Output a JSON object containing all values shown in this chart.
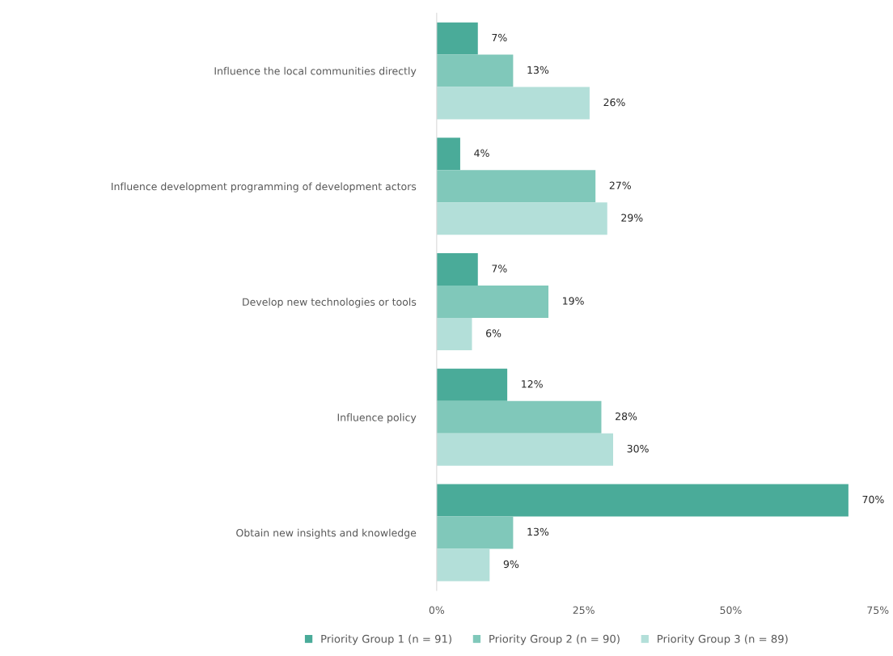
{
  "chart_data": {
    "type": "bar",
    "orientation": "horizontal",
    "categories": [
      "Influence the local communities directly",
      "Influence development programming of development actors",
      "Develop new technologies or tools",
      "Influence policy",
      "Obtain new insights and knowledge"
    ],
    "series": [
      {
        "name": "Priority Group 1 (n = 91)",
        "color": "#4aab99",
        "values": [
          7,
          4,
          7,
          12,
          70
        ],
        "value_labels": [
          "7%",
          "4%",
          "7%",
          "12%",
          "70%"
        ]
      },
      {
        "name": "Priority Group 2 (n = 90)",
        "color": "#80c8ba",
        "values": [
          13,
          27,
          19,
          28,
          13
        ],
        "value_labels": [
          "13%",
          "27%",
          "19%",
          "28%",
          "13%"
        ]
      },
      {
        "name": "Priority Group 3 (n = 89)",
        "color": "#b3dfd9",
        "values": [
          26,
          29,
          6,
          30,
          9
        ],
        "value_labels": [
          "26%",
          "29%",
          "6%",
          "30%",
          "9%"
        ]
      }
    ],
    "xlim": [
      0,
      75
    ],
    "xticks": [
      {
        "value": 0,
        "label": "0%"
      },
      {
        "value": 25,
        "label": "25%"
      },
      {
        "value": 50,
        "label": "50%"
      },
      {
        "value": 75,
        "label": "75%"
      }
    ],
    "grid": false,
    "legend": "bottom"
  }
}
